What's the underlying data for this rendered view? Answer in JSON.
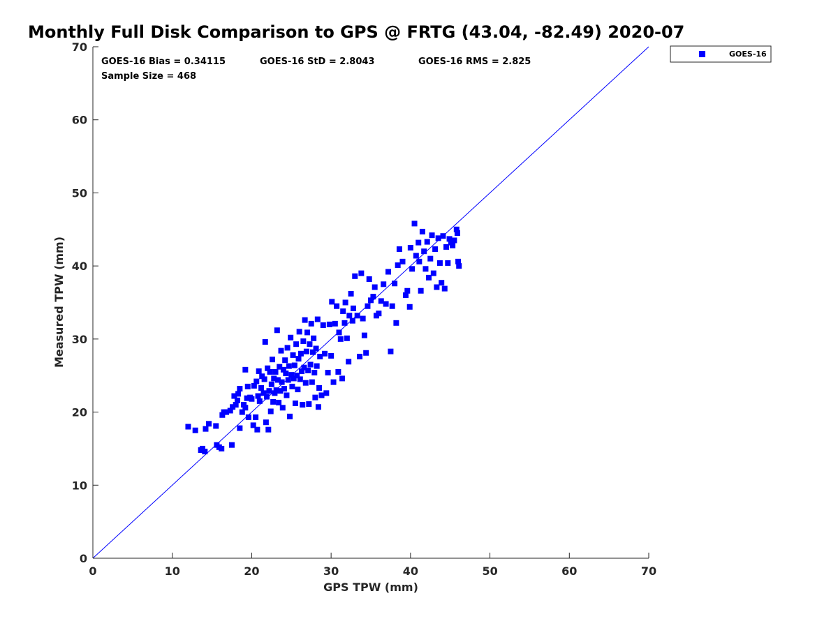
{
  "chart_data": {
    "type": "scatter",
    "title": "Monthly Full Disk Comparison to GPS @ FRTG (43.04, -82.49) 2020-07",
    "xlabel": "GPS TPW (mm)",
    "ylabel": "Measured TPW (mm)",
    "xlim": [
      0,
      70
    ],
    "ylim": [
      0,
      70
    ],
    "xticks": [
      "0",
      "10",
      "20",
      "30",
      "40",
      "50",
      "60",
      "70"
    ],
    "yticks": [
      "0",
      "10",
      "20",
      "30",
      "40",
      "50",
      "60",
      "70"
    ],
    "grid": false,
    "legend": "outside-top-right",
    "reference_line": {
      "type": "one-to-one",
      "color": "#0000ff"
    },
    "stats": {
      "bias": "GOES-16 Bias = 0.34115",
      "std": "GOES-16 StD = 2.8043",
      "rms": "GOES-16 RMS = 2.825",
      "sample_size": "Sample Size = 468"
    },
    "series": [
      {
        "name": "GOES-16",
        "color": "#0000ff",
        "marker": "square",
        "points": [
          [
            12.0,
            18.0
          ],
          [
            12.9,
            17.5
          ],
          [
            13.6,
            14.8
          ],
          [
            13.8,
            15.0
          ],
          [
            14.1,
            14.6
          ],
          [
            14.2,
            17.7
          ],
          [
            14.6,
            18.4
          ],
          [
            15.5,
            18.1
          ],
          [
            15.6,
            15.5
          ],
          [
            15.9,
            15.2
          ],
          [
            16.2,
            15.0
          ],
          [
            16.3,
            19.6
          ],
          [
            16.5,
            20.0
          ],
          [
            16.8,
            20.0
          ],
          [
            17.3,
            20.2
          ],
          [
            17.5,
            15.5
          ],
          [
            17.6,
            20.7
          ],
          [
            17.8,
            22.2
          ],
          [
            18.0,
            21.0
          ],
          [
            18.2,
            21.6
          ],
          [
            18.3,
            22.5
          ],
          [
            18.5,
            17.8
          ],
          [
            18.5,
            23.2
          ],
          [
            18.8,
            20.0
          ],
          [
            19.0,
            21.0
          ],
          [
            19.2,
            20.6
          ],
          [
            19.2,
            25.8
          ],
          [
            19.4,
            21.9
          ],
          [
            19.5,
            23.5
          ],
          [
            19.6,
            19.3
          ],
          [
            19.8,
            22.0
          ],
          [
            20.0,
            21.8
          ],
          [
            20.2,
            18.2
          ],
          [
            20.3,
            23.6
          ],
          [
            20.5,
            19.3
          ],
          [
            20.6,
            24.2
          ],
          [
            20.7,
            17.6
          ],
          [
            20.8,
            22.2
          ],
          [
            20.9,
            25.6
          ],
          [
            21.0,
            21.5
          ],
          [
            21.2,
            23.3
          ],
          [
            21.3,
            24.9
          ],
          [
            21.5,
            22.6
          ],
          [
            21.6,
            24.5
          ],
          [
            21.7,
            29.6
          ],
          [
            21.8,
            18.6
          ],
          [
            21.9,
            22.1
          ],
          [
            22.0,
            26.0
          ],
          [
            22.1,
            17.6
          ],
          [
            22.2,
            22.9
          ],
          [
            22.3,
            25.5
          ],
          [
            22.4,
            20.1
          ],
          [
            22.5,
            23.8
          ],
          [
            22.6,
            27.2
          ],
          [
            22.7,
            21.4
          ],
          [
            22.8,
            24.6
          ],
          [
            22.9,
            22.6
          ],
          [
            23.0,
            25.5
          ],
          [
            23.1,
            23.0
          ],
          [
            23.2,
            31.2
          ],
          [
            23.3,
            24.4
          ],
          [
            23.4,
            21.3
          ],
          [
            23.5,
            26.2
          ],
          [
            23.6,
            22.9
          ],
          [
            23.7,
            28.4
          ],
          [
            23.8,
            24.1
          ],
          [
            23.9,
            20.6
          ],
          [
            24.0,
            25.8
          ],
          [
            24.1,
            23.2
          ],
          [
            24.2,
            27.1
          ],
          [
            24.3,
            25.3
          ],
          [
            24.4,
            22.3
          ],
          [
            24.5,
            28.8
          ],
          [
            24.6,
            24.4
          ],
          [
            24.7,
            26.3
          ],
          [
            24.8,
            19.4
          ],
          [
            24.9,
            30.2
          ],
          [
            25.0,
            25.1
          ],
          [
            25.1,
            23.5
          ],
          [
            25.2,
            27.8
          ],
          [
            25.3,
            24.6
          ],
          [
            25.4,
            26.4
          ],
          [
            25.5,
            21.2
          ],
          [
            25.6,
            29.3
          ],
          [
            25.7,
            25.0
          ],
          [
            25.8,
            23.1
          ],
          [
            25.9,
            27.3
          ],
          [
            26.0,
            31.0
          ],
          [
            26.1,
            24.5
          ],
          [
            26.2,
            28.0
          ],
          [
            26.3,
            25.6
          ],
          [
            26.4,
            21.0
          ],
          [
            26.5,
            29.7
          ],
          [
            26.6,
            26.1
          ],
          [
            26.7,
            32.6
          ],
          [
            26.8,
            24.0
          ],
          [
            26.9,
            28.3
          ],
          [
            27.0,
            30.9
          ],
          [
            27.1,
            25.7
          ],
          [
            27.2,
            21.1
          ],
          [
            27.3,
            29.3
          ],
          [
            27.4,
            26.5
          ],
          [
            27.5,
            32.1
          ],
          [
            27.6,
            24.1
          ],
          [
            27.7,
            28.2
          ],
          [
            27.8,
            30.1
          ],
          [
            27.9,
            25.4
          ],
          [
            28.0,
            22.0
          ],
          [
            28.1,
            28.7
          ],
          [
            28.2,
            26.3
          ],
          [
            28.3,
            32.7
          ],
          [
            28.4,
            20.7
          ],
          [
            28.5,
            23.3
          ],
          [
            28.6,
            27.6
          ],
          [
            28.8,
            22.3
          ],
          [
            29.0,
            31.9
          ],
          [
            29.2,
            28.0
          ],
          [
            29.4,
            22.6
          ],
          [
            29.6,
            25.4
          ],
          [
            29.8,
            32.0
          ],
          [
            30.0,
            27.7
          ],
          [
            30.1,
            35.1
          ],
          [
            30.3,
            24.1
          ],
          [
            30.5,
            32.1
          ],
          [
            30.7,
            34.5
          ],
          [
            30.9,
            25.5
          ],
          [
            31.0,
            30.9
          ],
          [
            31.2,
            30.0
          ],
          [
            31.4,
            24.6
          ],
          [
            31.5,
            33.8
          ],
          [
            31.7,
            32.2
          ],
          [
            31.8,
            35.0
          ],
          [
            32.0,
            30.1
          ],
          [
            32.2,
            26.9
          ],
          [
            32.3,
            33.2
          ],
          [
            32.5,
            36.2
          ],
          [
            32.7,
            32.5
          ],
          [
            32.8,
            34.2
          ],
          [
            33.0,
            38.6
          ],
          [
            33.3,
            33.2
          ],
          [
            33.6,
            27.6
          ],
          [
            33.8,
            39.0
          ],
          [
            34.0,
            32.8
          ],
          [
            34.2,
            30.5
          ],
          [
            34.4,
            28.1
          ],
          [
            34.6,
            34.5
          ],
          [
            34.8,
            38.2
          ],
          [
            35.0,
            35.3
          ],
          [
            35.3,
            35.8
          ],
          [
            35.5,
            37.1
          ],
          [
            35.7,
            33.2
          ],
          [
            36.0,
            33.5
          ],
          [
            36.3,
            35.2
          ],
          [
            36.6,
            37.5
          ],
          [
            36.9,
            34.8
          ],
          [
            37.2,
            39.2
          ],
          [
            37.5,
            28.3
          ],
          [
            37.7,
            34.5
          ],
          [
            38.0,
            37.6
          ],
          [
            38.2,
            32.2
          ],
          [
            38.4,
            40.1
          ],
          [
            38.6,
            42.3
          ],
          [
            39.0,
            40.6
          ],
          [
            39.4,
            36.0
          ],
          [
            39.6,
            36.6
          ],
          [
            39.9,
            34.4
          ],
          [
            40.0,
            42.5
          ],
          [
            40.2,
            39.6
          ],
          [
            40.5,
            45.8
          ],
          [
            40.7,
            41.4
          ],
          [
            41.0,
            43.2
          ],
          [
            41.1,
            40.6
          ],
          [
            41.3,
            36.6
          ],
          [
            41.5,
            44.7
          ],
          [
            41.7,
            42.0
          ],
          [
            41.9,
            39.6
          ],
          [
            42.1,
            43.3
          ],
          [
            42.3,
            38.4
          ],
          [
            42.5,
            41.0
          ],
          [
            42.7,
            44.2
          ],
          [
            42.9,
            39.0
          ],
          [
            43.1,
            42.3
          ],
          [
            43.3,
            37.1
          ],
          [
            43.5,
            43.8
          ],
          [
            43.7,
            40.4
          ],
          [
            43.9,
            37.7
          ],
          [
            44.1,
            44.1
          ],
          [
            44.3,
            36.9
          ],
          [
            44.5,
            42.6
          ],
          [
            44.7,
            40.4
          ],
          [
            44.9,
            43.7
          ],
          [
            45.1,
            43.2
          ],
          [
            45.3,
            42.8
          ],
          [
            45.5,
            43.5
          ],
          [
            45.8,
            45.0
          ],
          [
            45.9,
            44.5
          ],
          [
            46.0,
            40.6
          ],
          [
            46.1,
            40.0
          ]
        ]
      }
    ]
  }
}
